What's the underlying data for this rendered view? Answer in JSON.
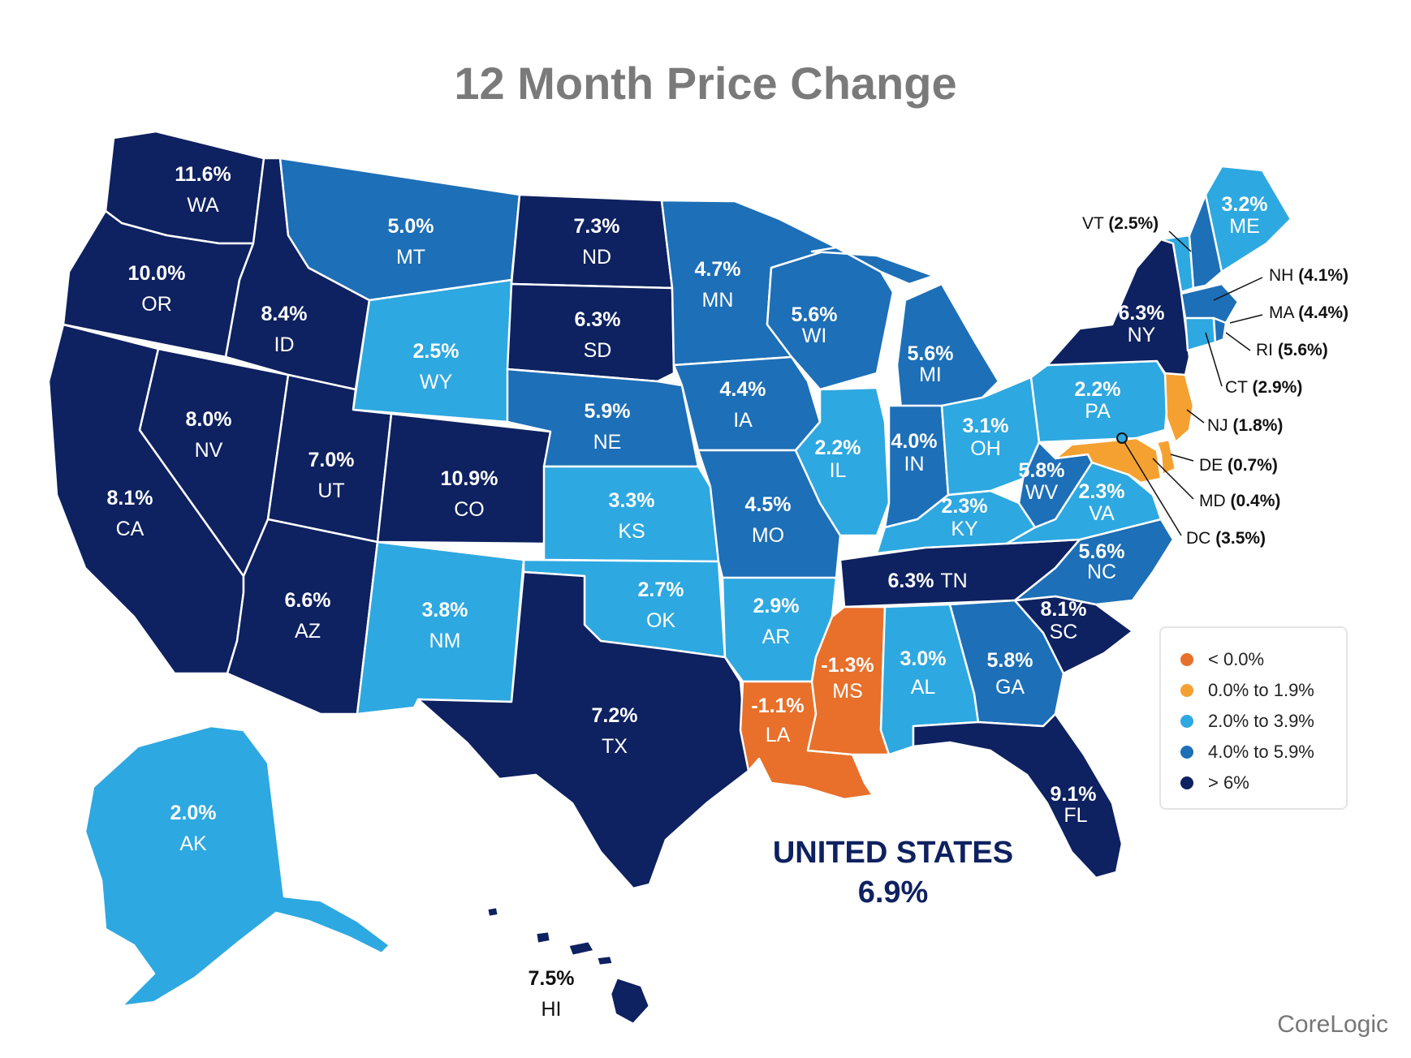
{
  "title": "12 Month Price Change",
  "colors": {
    "neg": "#e8702a",
    "low": "#f5a132",
    "mid": "#2ea8e0",
    "high": "#1d6fb7",
    "top": "#0e2160",
    "outline": "#ffffff"
  },
  "legend": [
    {
      "label": "< 0.0%",
      "color": "#e8702a"
    },
    {
      "label": "0.0% to 1.9%",
      "color": "#f5a132"
    },
    {
      "label": "2.0% to 3.9%",
      "color": "#2ea8e0"
    },
    {
      "label": "4.0% to 5.9%",
      "color": "#1d6fb7"
    },
    {
      "label": "> 6%",
      "color": "#0e2160"
    }
  ],
  "states": {
    "WA": {
      "value": "11.6%",
      "abbr": "WA"
    },
    "OR": {
      "value": "10.0%",
      "abbr": "OR"
    },
    "CA": {
      "value": "8.1%",
      "abbr": "CA"
    },
    "NV": {
      "value": "8.0%",
      "abbr": "NV"
    },
    "ID": {
      "value": "8.4%",
      "abbr": "ID"
    },
    "MT": {
      "value": "5.0%",
      "abbr": "MT"
    },
    "WY": {
      "value": "2.5%",
      "abbr": "WY"
    },
    "UT": {
      "value": "7.0%",
      "abbr": "UT"
    },
    "AZ": {
      "value": "6.6%",
      "abbr": "AZ"
    },
    "CO": {
      "value": "10.9%",
      "abbr": "CO"
    },
    "NM": {
      "value": "3.8%",
      "abbr": "NM"
    },
    "ND": {
      "value": "7.3%",
      "abbr": "ND"
    },
    "SD": {
      "value": "6.3%",
      "abbr": "SD"
    },
    "NE": {
      "value": "5.9%",
      "abbr": "NE"
    },
    "KS": {
      "value": "3.3%",
      "abbr": "KS"
    },
    "OK": {
      "value": "2.7%",
      "abbr": "OK"
    },
    "TX": {
      "value": "7.2%",
      "abbr": "TX"
    },
    "MN": {
      "value": "4.7%",
      "abbr": "MN"
    },
    "IA": {
      "value": "4.4%",
      "abbr": "IA"
    },
    "MO": {
      "value": "4.5%",
      "abbr": "MO"
    },
    "AR": {
      "value": "2.9%",
      "abbr": "AR"
    },
    "LA": {
      "value": "-1.1%",
      "abbr": "LA"
    },
    "WI": {
      "value": "5.6%",
      "abbr": "WI"
    },
    "IL": {
      "value": "2.2%",
      "abbr": "IL"
    },
    "MI": {
      "value": "5.6%",
      "abbr": "MI"
    },
    "IN": {
      "value": "4.0%",
      "abbr": "IN"
    },
    "OH": {
      "value": "3.1%",
      "abbr": "OH"
    },
    "KY": {
      "value": "2.3%",
      "abbr": "KY"
    },
    "TN": {
      "value": "6.3%",
      "abbr": "TN"
    },
    "MS": {
      "value": "-1.3%",
      "abbr": "MS"
    },
    "AL": {
      "value": "3.0%",
      "abbr": "AL"
    },
    "GA": {
      "value": "5.8%",
      "abbr": "GA"
    },
    "FL": {
      "value": "9.1%",
      "abbr": "FL"
    },
    "SC": {
      "value": "8.1%",
      "abbr": "SC"
    },
    "NC": {
      "value": "5.6%",
      "abbr": "NC"
    },
    "VA": {
      "value": "2.3%",
      "abbr": "VA"
    },
    "WV": {
      "value": "5.8%",
      "abbr": "WV"
    },
    "PA": {
      "value": "2.2%",
      "abbr": "PA"
    },
    "NY": {
      "value": "6.3%",
      "abbr": "NY"
    },
    "ME": {
      "value": "3.2%",
      "abbr": "ME"
    },
    "AK": {
      "value": "2.0%",
      "abbr": "AK"
    },
    "HI": {
      "value": "7.5%",
      "abbr": "HI"
    }
  },
  "callouts": {
    "VT": {
      "abbr": "VT",
      "value": "(2.5%)"
    },
    "NH": {
      "abbr": "NH",
      "value": "(4.1%)"
    },
    "MA": {
      "abbr": "MA",
      "value": "(4.4%)"
    },
    "RI": {
      "abbr": "RI",
      "value": "(5.6%)"
    },
    "CT": {
      "abbr": "CT",
      "value": "(2.9%)"
    },
    "NJ": {
      "abbr": "NJ",
      "value": "(1.8%)"
    },
    "DE": {
      "abbr": "DE",
      "value": "(0.7%)"
    },
    "MD": {
      "abbr": "MD",
      "value": "(0.4%)"
    },
    "DC": {
      "abbr": "DC",
      "value": "(3.5%)"
    }
  },
  "national": {
    "name": "UNITED STATES",
    "value": "6.9%"
  },
  "source": "CoreLogic"
}
